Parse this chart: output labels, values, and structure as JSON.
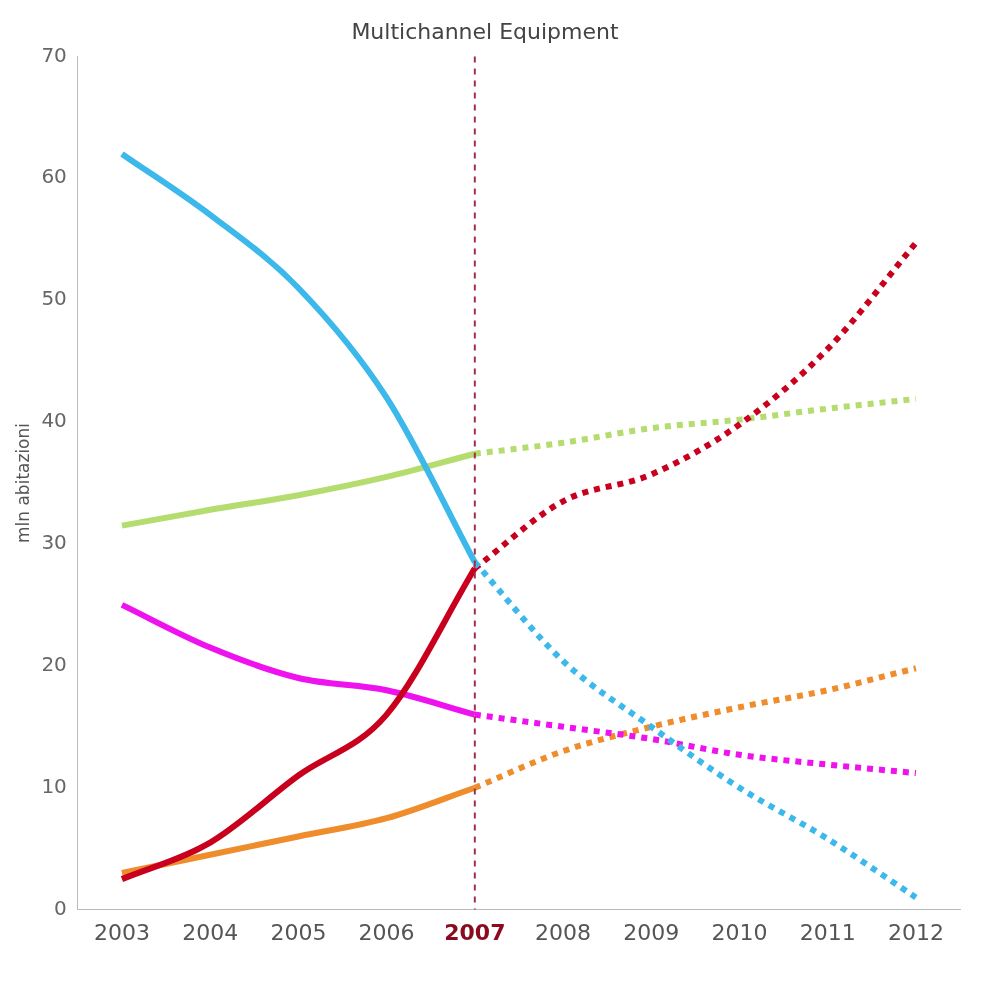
{
  "chart_data": {
    "type": "line",
    "title": "Multichannel Equipment",
    "ylabel": "mln abitazioni",
    "categories": [
      "2003",
      "2004",
      "2005",
      "2006",
      "2007",
      "2008",
      "2009",
      "2010",
      "2011",
      "2012"
    ],
    "ylim": [
      0,
      70
    ],
    "yticks": [
      0,
      10,
      20,
      30,
      40,
      50,
      60,
      70
    ],
    "grid": false,
    "legend": false,
    "marker": "none",
    "ref_lines": [
      {
        "axis": "x",
        "value": "2007",
        "color": "#a0304a",
        "line_style": "dotted"
      }
    ],
    "series": [
      {
        "color": "#3db8ea",
        "line_style": "solid",
        "values": [
          62,
          57,
          51,
          42,
          28.5,
          null,
          null,
          null,
          null,
          null
        ]
      },
      {
        "color": "#3db8ea",
        "line_style": "dotted",
        "values": [
          null,
          null,
          null,
          null,
          28.5,
          20.4,
          15,
          10,
          5.8,
          1
        ]
      },
      {
        "color": "#c8001e",
        "line_style": "solid",
        "values": [
          2.5,
          5.5,
          11,
          16,
          28,
          null,
          null,
          null,
          null,
          null
        ]
      },
      {
        "color": "#c8001e",
        "line_style": "dotted",
        "values": [
          null,
          null,
          null,
          null,
          28,
          33.5,
          35.7,
          39.8,
          46,
          54.7
        ]
      },
      {
        "color": "#b5dc6e",
        "line_style": "solid",
        "values": [
          31.5,
          32.8,
          34,
          35.5,
          37.4,
          null,
          null,
          null,
          null,
          null
        ]
      },
      {
        "color": "#b5dc6e",
        "line_style": "dotted",
        "values": [
          null,
          null,
          null,
          null,
          37.4,
          38.3,
          39.5,
          40.2,
          41.1,
          41.9
        ]
      },
      {
        "color": "#ee12ee",
        "line_style": "solid",
        "values": [
          25,
          21.5,
          19,
          18,
          16,
          null,
          null,
          null,
          null,
          null
        ]
      },
      {
        "color": "#ee12ee",
        "line_style": "dotted",
        "values": [
          null,
          null,
          null,
          null,
          16,
          15,
          14,
          12.7,
          11.9,
          11.2
        ]
      },
      {
        "color": "#ef8c2c",
        "line_style": "solid",
        "values": [
          3,
          4.5,
          6,
          7.5,
          10,
          null,
          null,
          null,
          null,
          null
        ]
      },
      {
        "color": "#ef8c2c",
        "line_style": "dotted",
        "values": [
          null,
          null,
          null,
          null,
          10,
          13,
          15,
          16.6,
          18,
          19.8
        ]
      }
    ]
  }
}
